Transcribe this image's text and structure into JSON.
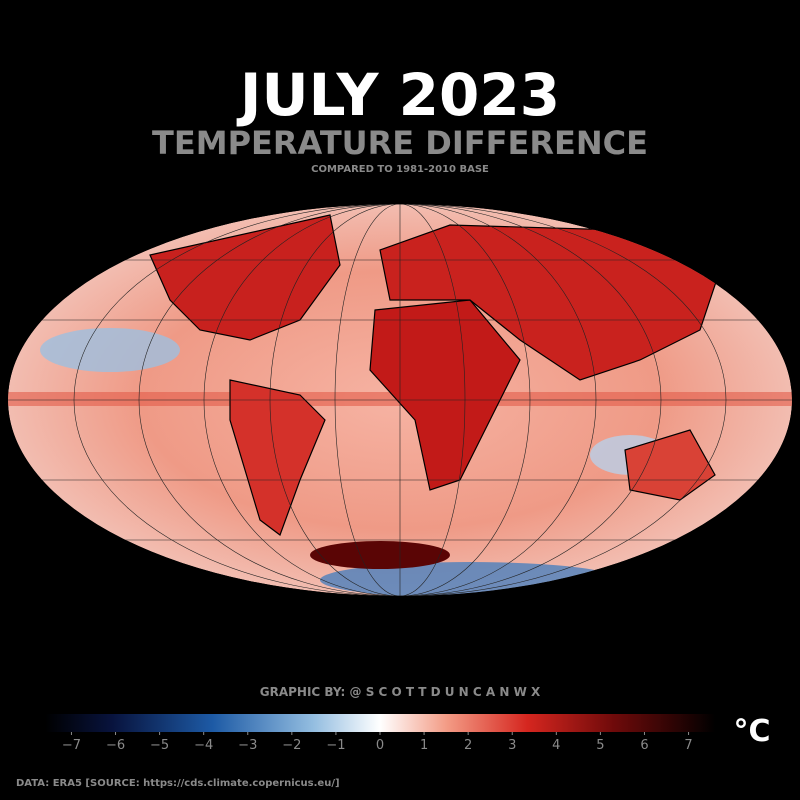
{
  "header": {
    "title": "JULY 2023",
    "subtitle": "TEMPERATURE DIFFERENCE",
    "note": "COMPARED TO 1981-2010 BASE"
  },
  "credit": "GRAPHIC BY: @ S C O T T D U N C A N W X",
  "colorbar": {
    "unit": "°C",
    "lim": [
      -7.6,
      7.6
    ],
    "ticks": [
      {
        "value": -7,
        "label": "−7"
      },
      {
        "value": -6,
        "label": "−6"
      },
      {
        "value": -5,
        "label": "−5"
      },
      {
        "value": -4,
        "label": "−4"
      },
      {
        "value": -3,
        "label": "−3"
      },
      {
        "value": -2,
        "label": "−2"
      },
      {
        "value": -1,
        "label": "−1"
      },
      0,
      1,
      2,
      3,
      4,
      5,
      6,
      7
    ]
  },
  "source": "DATA: ERA5 [SOURCE: https://cds.climate.copernicus.eu/]"
}
